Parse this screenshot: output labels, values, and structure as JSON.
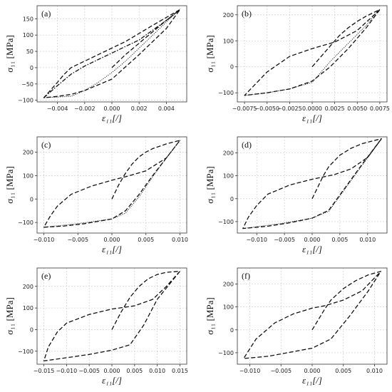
{
  "chart_data": [
    {
      "type": "line",
      "panel_label": "(a)",
      "xlabel": "ε₁₁[/]",
      "ylabel": "σ₁₁ [MPa]",
      "xlim": [
        -0.0055,
        0.0055
      ],
      "ylim": [
        -105,
        190
      ],
      "xticks": [
        -0.004,
        -0.002,
        0.0,
        0.002,
        0.004
      ],
      "xtick_labels": [
        "−0.004",
        "−0.002",
        "0.000",
        "0.002",
        "0.004"
      ],
      "yticks": [
        -100,
        -50,
        0,
        50,
        100,
        150
      ],
      "ytick_labels": [
        "−100",
        "−50",
        "0",
        "50",
        "100",
        "150"
      ],
      "grid": true,
      "series": [
        {
          "style": "dashed",
          "x": [
            0.0,
            0.001,
            0.002,
            0.003,
            0.004,
            0.005,
            0.003,
            0.001,
            -0.001,
            -0.003,
            -0.0035,
            -0.004,
            -0.005,
            -0.004,
            -0.003,
            -0.002,
            0.0,
            0.002,
            0.004,
            0.005
          ],
          "y": [
            0,
            40,
            75,
            110,
            145,
            178,
            130,
            80,
            40,
            0,
            -20,
            -45,
            -92,
            -88,
            -82,
            -70,
            -35,
            40,
            120,
            178
          ]
        },
        {
          "style": "dashdot",
          "x": [
            -0.005,
            -0.004,
            -0.003,
            -0.002,
            -0.001,
            0.0,
            0.001,
            0.002,
            0.003,
            0.004,
            0.005
          ],
          "y": [
            -92,
            -55,
            -20,
            5,
            25,
            45,
            65,
            85,
            115,
            145,
            178
          ]
        },
        {
          "style": "dotted",
          "x": [
            -0.005,
            -0.003,
            -0.002,
            -0.001,
            0.0,
            0.001,
            0.002,
            0.003,
            0.004,
            0.005
          ],
          "y": [
            -92,
            -88,
            -70,
            -45,
            -15,
            20,
            60,
            100,
            140,
            180
          ]
        }
      ]
    },
    {
      "type": "line",
      "panel_label": "(b)",
      "xlabel": "ε₁₁[/]",
      "ylabel": "σ₁₁ [MPa]",
      "xlim": [
        -0.0083,
        0.0083
      ],
      "ylim": [
        -135,
        235
      ],
      "xticks": [
        -0.0075,
        -0.005,
        -0.0025,
        0.0,
        0.0025,
        0.005,
        0.0075
      ],
      "xtick_labels": [
        "−0.0075",
        "−0.0050",
        "−0.0025",
        "0.0000",
        "0.0025",
        "0.0050",
        "0.0075"
      ],
      "yticks": [
        -100,
        0,
        100,
        200
      ],
      "ytick_labels": [
        "−100",
        "0",
        "100",
        "200"
      ],
      "grid": true,
      "series": [
        {
          "style": "dashed",
          "x": [
            0.0,
            0.001,
            0.002,
            0.003,
            0.004,
            0.005,
            0.006,
            0.0075,
            0.005,
            0.0025,
            0.0,
            -0.0025,
            -0.005,
            -0.0075,
            -0.005,
            -0.0025,
            0.0,
            0.002,
            0.004,
            0.006,
            0.0075
          ],
          "y": [
            0,
            40,
            80,
            120,
            150,
            175,
            195,
            220,
            140,
            95,
            70,
            40,
            -20,
            -110,
            -100,
            -85,
            -55,
            0,
            70,
            150,
            220
          ]
        },
        {
          "style": "dotted",
          "x": [
            -0.0075,
            -0.005,
            -0.0025,
            0.0,
            0.002,
            0.004,
            0.006,
            0.0075
          ],
          "y": [
            -110,
            -100,
            -85,
            -60,
            20,
            90,
            160,
            222
          ]
        }
      ]
    },
    {
      "type": "line",
      "panel_label": "(c)",
      "xlabel": "ε₁₁[/]",
      "ylabel": "σ₁₁ [MPa]",
      "xlim": [
        -0.011,
        0.011
      ],
      "ylim": [
        -145,
        265
      ],
      "xticks": [
        -0.01,
        -0.005,
        0.0,
        0.005,
        0.01
      ],
      "xtick_labels": [
        "−0.010",
        "−0.005",
        "0.000",
        "0.005",
        "0.010"
      ],
      "yticks": [
        -100,
        0,
        100,
        200
      ],
      "ytick_labels": [
        "−100",
        "0",
        "100",
        "200"
      ],
      "grid": true,
      "series": [
        {
          "style": "dashed",
          "x": [
            0.0,
            0.001,
            0.002,
            0.003,
            0.004,
            0.005,
            0.006,
            0.008,
            0.01,
            0.008,
            0.005,
            0.002,
            0.0,
            -0.003,
            -0.006,
            -0.008,
            -0.009,
            -0.01,
            -0.007,
            -0.004,
            0.0,
            0.002,
            0.004,
            0.006,
            0.008,
            0.01
          ],
          "y": [
            0,
            60,
            110,
            150,
            180,
            200,
            215,
            235,
            250,
            175,
            120,
            95,
            80,
            55,
            20,
            -30,
            -70,
            -120,
            -115,
            -105,
            -85,
            -50,
            20,
            100,
            175,
            250
          ]
        },
        {
          "style": "dotted",
          "x": [
            -0.01,
            -0.005,
            0.0,
            0.002,
            0.004,
            0.006,
            0.008,
            0.01
          ],
          "y": [
            -120,
            -105,
            -85,
            -60,
            10,
            95,
            175,
            250
          ]
        }
      ]
    },
    {
      "type": "line",
      "panel_label": "(d)",
      "xlabel": "ε₁₁[/]",
      "ylabel": "σ₁₁ [MPa]",
      "xlim": [
        -0.0135,
        0.0135
      ],
      "ylim": [
        -150,
        270
      ],
      "xticks": [
        -0.01,
        -0.005,
        0.0,
        0.005,
        0.01
      ],
      "xtick_labels": [
        "−0.010",
        "−0.005",
        "0.000",
        "0.005",
        "0.010"
      ],
      "yticks": [
        -100,
        0,
        100,
        200
      ],
      "ytick_labels": [
        "−100",
        "0",
        "100",
        "200"
      ],
      "grid": true,
      "series": [
        {
          "style": "dashed",
          "x": [
            0.0,
            0.001,
            0.002,
            0.003,
            0.005,
            0.007,
            0.009,
            0.0125,
            0.01,
            0.007,
            0.004,
            0.0,
            -0.004,
            -0.008,
            -0.01,
            -0.0115,
            -0.0125,
            -0.008,
            -0.004,
            0.0,
            0.003,
            0.006,
            0.009,
            0.0125
          ],
          "y": [
            0,
            50,
            100,
            140,
            190,
            220,
            240,
            262,
            180,
            130,
            105,
            85,
            60,
            20,
            -30,
            -80,
            -130,
            -120,
            -105,
            -85,
            -50,
            50,
            150,
            262
          ]
        },
        {
          "style": "dotted",
          "x": [
            -0.0125,
            -0.006,
            0.0,
            0.003,
            0.006,
            0.009,
            0.0125
          ],
          "y": [
            -130,
            -110,
            -85,
            -55,
            45,
            145,
            260
          ]
        }
      ]
    },
    {
      "type": "line",
      "panel_label": "(e)",
      "xlabel": "ε₁₁[/]",
      "ylabel": "σ₁₁ [MPa]",
      "xlim": [
        -0.0165,
        0.0165
      ],
      "ylim": [
        -160,
        285
      ],
      "xticks": [
        -0.015,
        -0.01,
        -0.005,
        0.0,
        0.005,
        0.01,
        0.015
      ],
      "xtick_labels": [
        "−0.015",
        "−0.010",
        "−0.005",
        "0.000",
        "0.005",
        "0.010",
        "0.015"
      ],
      "yticks": [
        -100,
        0,
        100,
        200
      ],
      "ytick_labels": [
        "−100",
        "0",
        "100",
        "200"
      ],
      "grid": true,
      "series": [
        {
          "style": "dashed",
          "x": [
            0.0,
            0.002,
            0.004,
            0.006,
            0.008,
            0.01,
            0.012,
            0.015,
            0.012,
            0.009,
            0.005,
            0.0,
            -0.005,
            -0.01,
            -0.012,
            -0.014,
            -0.015,
            -0.01,
            -0.005,
            0.0,
            0.004,
            0.007,
            0.01,
            0.015
          ],
          "y": [
            0,
            80,
            150,
            200,
            235,
            255,
            265,
            270,
            200,
            140,
            110,
            95,
            70,
            30,
            -10,
            -80,
            -145,
            -130,
            -115,
            -95,
            -70,
            20,
            140,
            270
          ]
        }
      ]
    },
    {
      "type": "line",
      "panel_label": "(f)",
      "xlabel": "ε₁₁[/]",
      "ylabel": "σ₁₁ [MPa]",
      "xlim": [
        -0.012,
        0.012
      ],
      "ylim": [
        -150,
        270
      ],
      "xticks": [
        -0.01,
        -0.005,
        0.0,
        0.005,
        0.01
      ],
      "xtick_labels": [
        "−0.010",
        "−0.005",
        "0.000",
        "0.005",
        "0.010"
      ],
      "yticks": [
        -100,
        0,
        100,
        200
      ],
      "ytick_labels": [
        "−100",
        "0",
        "100",
        "200"
      ],
      "grid": true,
      "series": [
        {
          "style": "dashed",
          "x": [
            0.0,
            0.001,
            0.002,
            0.003,
            0.005,
            0.007,
            0.009,
            0.011,
            0.008,
            0.005,
            0.002,
            0.0,
            -0.003,
            -0.006,
            -0.009,
            -0.011,
            -0.007,
            -0.003,
            0.0,
            0.003,
            0.006,
            0.009,
            0.011
          ],
          "y": [
            0,
            45,
            90,
            130,
            180,
            215,
            240,
            255,
            170,
            130,
            105,
            95,
            70,
            30,
            -40,
            -125,
            -115,
            -95,
            -80,
            -40,
            60,
            170,
            255
          ]
        }
      ]
    }
  ]
}
